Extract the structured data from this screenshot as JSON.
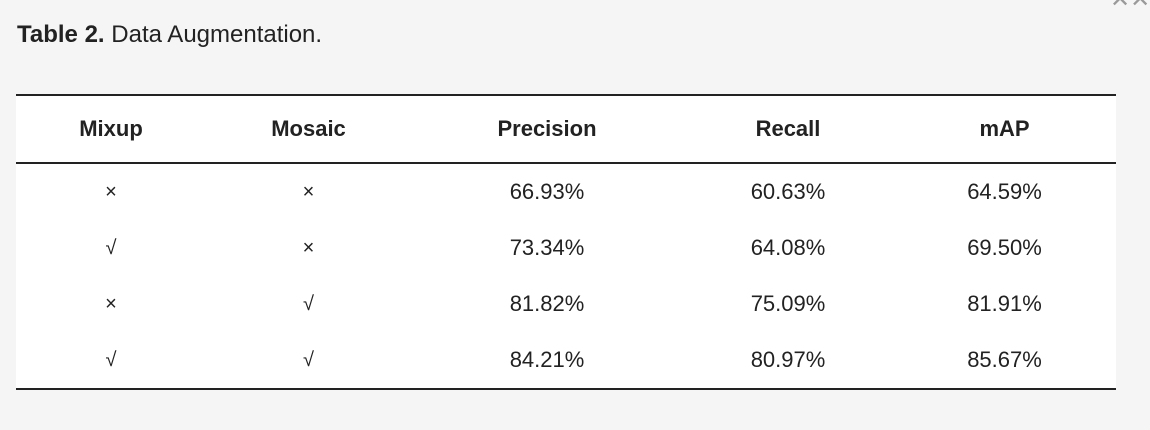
{
  "caption": {
    "label": "Table 2.",
    "title": "Data Augmentation."
  },
  "corner_icon": "close-icon",
  "table": {
    "headers": [
      "Mixup",
      "Mosaic",
      "Precision",
      "Recall",
      "mAP"
    ],
    "rows": [
      [
        "×",
        "×",
        "66.93%",
        "60.63%",
        "64.59%"
      ],
      [
        "√",
        "×",
        "73.34%",
        "64.08%",
        "69.50%"
      ],
      [
        "×",
        "√",
        "81.82%",
        "75.09%",
        "81.91%"
      ],
      [
        "√",
        "√",
        "84.21%",
        "80.97%",
        "85.67%"
      ]
    ]
  }
}
